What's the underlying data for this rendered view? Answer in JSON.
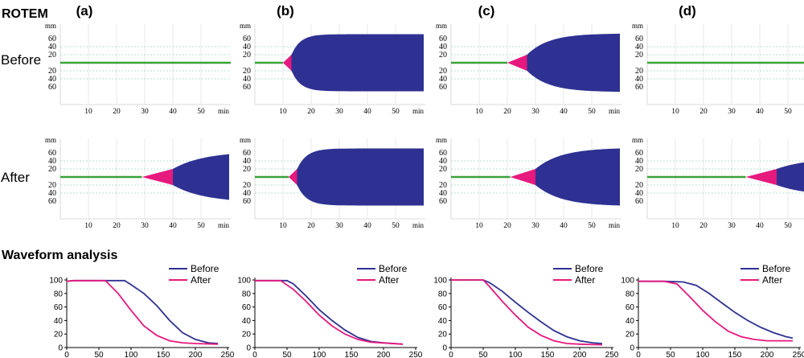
{
  "labels": {
    "rotem": "ROTEM",
    "waveform": "Waveform analysis",
    "before": "Before",
    "after": "After",
    "unit_mm": "mm",
    "unit_min": "min"
  },
  "colors": {
    "amplitude": "#2e3192",
    "pink": "#e6197e",
    "baseline": "#3aa13a",
    "before_line": "#2e3192",
    "after_line": "#e6197e",
    "grid": "#9fd8c8"
  },
  "chart_data": {
    "rotem": {
      "type": "area",
      "columns": [
        "(a)",
        "(b)",
        "(c)",
        "(d)"
      ],
      "rows": [
        "Before",
        "After"
      ],
      "xlabel": "min",
      "ylabel": "mm",
      "x_ticks": [
        10,
        20,
        30,
        40,
        50
      ],
      "y_ticks_upper": [
        20,
        40,
        60
      ],
      "y_ticks_lower": [
        20,
        40,
        60
      ],
      "traces": [
        [
          {
            "ct": null,
            "t20": null,
            "A_max": 0,
            "k": 0,
            "t_end": 60
          },
          {
            "ct": 10,
            "t20": 13,
            "A_max": 71,
            "k": 0.32,
            "t_end": 60
          },
          {
            "ct": 20,
            "t20": 27,
            "A_max": 73,
            "k": 0.13,
            "t_end": 60
          },
          {
            "ct": null,
            "t20": null,
            "A_max": 0,
            "k": 0,
            "t_end": 60
          }
        ],
        [
          {
            "ct": 29,
            "t20": 40,
            "A_max": 64,
            "k": 0.09,
            "t_end": 60
          },
          {
            "ct": 12,
            "t20": 15,
            "A_max": 71,
            "k": 0.3,
            "t_end": 60
          },
          {
            "ct": 21,
            "t20": 30,
            "A_max": 73,
            "k": 0.11,
            "t_end": 60
          },
          {
            "ct": 35,
            "t20": 46,
            "A_max": 48,
            "k": 0.09,
            "t_end": 60
          }
        ]
      ]
    },
    "waveform": {
      "type": "line",
      "x_ticks": [
        0,
        50,
        100,
        150,
        200,
        250
      ],
      "y_ticks": [
        0,
        20,
        40,
        60,
        80,
        100
      ],
      "xlim": [
        0,
        250
      ],
      "ylim": [
        0,
        100
      ],
      "panels": [
        {
          "series": [
            {
              "name": "Before",
              "x": [
                0,
                10,
                40,
                60,
                90,
                100,
                120,
                140,
                160,
                180,
                200,
                220,
                235
              ],
              "y": [
                98,
                99,
                99,
                99,
                99,
                93,
                80,
                62,
                40,
                22,
                12,
                7,
                6
              ]
            },
            {
              "name": "After",
              "x": [
                0,
                10,
                40,
                60,
                80,
                100,
                120,
                140,
                160,
                180,
                200,
                235
              ],
              "y": [
                98,
                99,
                99,
                99,
                80,
                55,
                32,
                18,
                10,
                7,
                6,
                5
              ]
            }
          ]
        },
        {
          "series": [
            {
              "name": "Before",
              "x": [
                0,
                10,
                50,
                60,
                80,
                100,
                120,
                140,
                160,
                180,
                200,
                230
              ],
              "y": [
                99,
                99,
                99,
                94,
                76,
                56,
                40,
                26,
                15,
                9,
                7,
                5
              ]
            },
            {
              "name": "After",
              "x": [
                0,
                10,
                40,
                60,
                80,
                100,
                120,
                140,
                160,
                180,
                230
              ],
              "y": [
                99,
                99,
                99,
                86,
                68,
                48,
                32,
                20,
                12,
                8,
                5
              ]
            }
          ]
        },
        {
          "series": [
            {
              "name": "Before",
              "x": [
                0,
                10,
                50,
                60,
                80,
                100,
                120,
                140,
                160,
                180,
                200,
                220,
                235
              ],
              "y": [
                100,
                100,
                100,
                96,
                83,
                67,
                52,
                38,
                25,
                16,
                10,
                7,
                6
              ]
            },
            {
              "name": "After",
              "x": [
                0,
                10,
                50,
                60,
                80,
                100,
                120,
                140,
                160,
                180,
                200,
                235
              ],
              "y": [
                100,
                100,
                100,
                90,
                68,
                48,
                30,
                18,
                10,
                6,
                5,
                4
              ]
            }
          ]
        },
        {
          "series": [
            {
              "name": "Before",
              "x": [
                0,
                10,
                40,
                70,
                90,
                110,
                130,
                150,
                170,
                190,
                210,
                230,
                240
              ],
              "y": [
                98,
                98,
                98,
                97,
                92,
                80,
                66,
                52,
                40,
                30,
                22,
                16,
                14
              ]
            },
            {
              "name": "After",
              "x": [
                0,
                10,
                40,
                60,
                80,
                100,
                120,
                140,
                160,
                180,
                200,
                240
              ],
              "y": [
                98,
                98,
                98,
                94,
                75,
                55,
                38,
                24,
                16,
                12,
                10,
                10
              ]
            }
          ]
        }
      ]
    }
  }
}
